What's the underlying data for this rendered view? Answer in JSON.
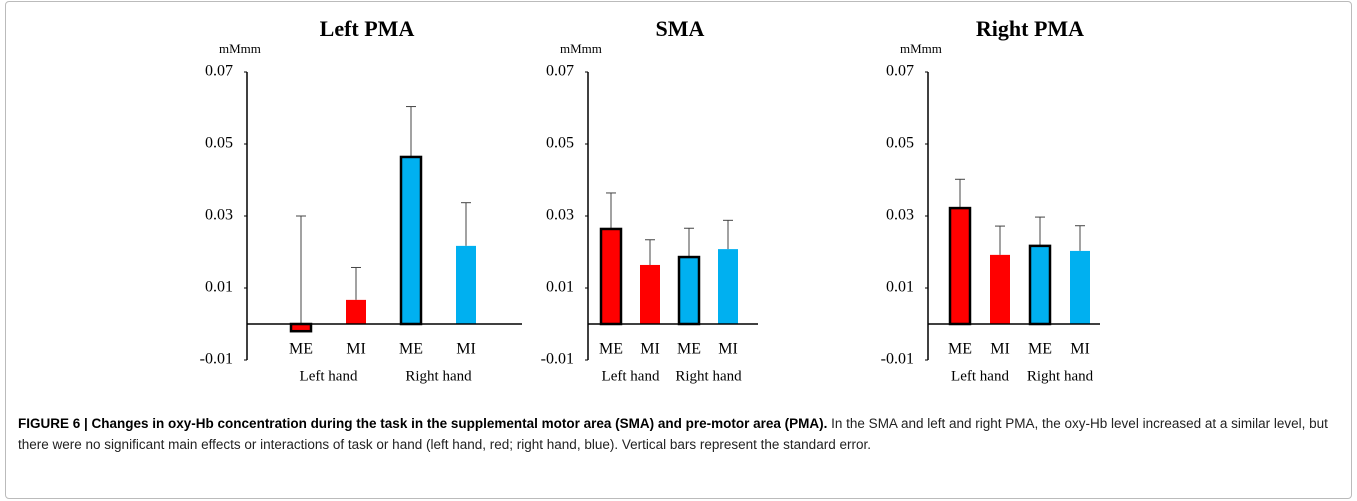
{
  "chart_data": [
    {
      "type": "bar",
      "title": "Left PMA",
      "y_unit": "mMmm",
      "categories": [
        "ME",
        "MI",
        "ME",
        "MI"
      ],
      "groups": [
        "Left hand",
        "Right hand"
      ],
      "values": [
        -0.002,
        0.0067,
        0.0464,
        0.0217
      ],
      "errors": [
        0.032,
        0.009,
        0.014,
        0.012
      ],
      "colors": [
        "#ff0000",
        "#ff0000",
        "#00b0f0",
        "#00b0f0"
      ],
      "bar_edges": [
        true,
        false,
        true,
        false
      ],
      "ylim": [
        -0.01,
        0.07
      ],
      "yticks": [
        -0.01,
        0.01,
        0.03,
        0.05,
        0.07
      ]
    },
    {
      "type": "bar",
      "title": "SMA",
      "y_unit": "mMmm",
      "categories": [
        "ME",
        "MI",
        "ME",
        "MI"
      ],
      "groups": [
        "Left hand",
        "Right hand"
      ],
      "values": [
        0.0264,
        0.0164,
        0.0186,
        0.0208
      ],
      "errors": [
        0.01,
        0.007,
        0.008,
        0.008
      ],
      "colors": [
        "#ff0000",
        "#ff0000",
        "#00b0f0",
        "#00b0f0"
      ],
      "bar_edges": [
        true,
        false,
        true,
        false
      ],
      "ylim": [
        -0.01,
        0.07
      ],
      "yticks": [
        -0.01,
        0.01,
        0.03,
        0.05,
        0.07
      ]
    },
    {
      "type": "bar",
      "title": "Right PMA",
      "y_unit": "mMmm",
      "categories": [
        "ME",
        "MI",
        "ME",
        "MI"
      ],
      "groups": [
        "Left hand",
        "Right hand"
      ],
      "values": [
        0.0322,
        0.0192,
        0.0217,
        0.0203
      ],
      "errors": [
        0.008,
        0.008,
        0.008,
        0.007
      ],
      "colors": [
        "#ff0000",
        "#ff0000",
        "#00b0f0",
        "#00b0f0"
      ],
      "bar_edges": [
        true,
        false,
        true,
        false
      ],
      "ylim": [
        -0.01,
        0.07
      ],
      "yticks": [
        -0.01,
        0.01,
        0.03,
        0.05,
        0.07
      ]
    }
  ],
  "caption": {
    "title": "FIGURE 6 | Changes in oxy-Hb concentration during the task in the supplemental motor area (SMA) and pre-motor area (PMA).",
    "body": "In the SMA and left and right PMA, the oxy-Hb level increased at a similar level, but there were no significant main effects or interactions of task or hand (left hand, red; right hand, blue). Vertical bars represent the standard error."
  }
}
